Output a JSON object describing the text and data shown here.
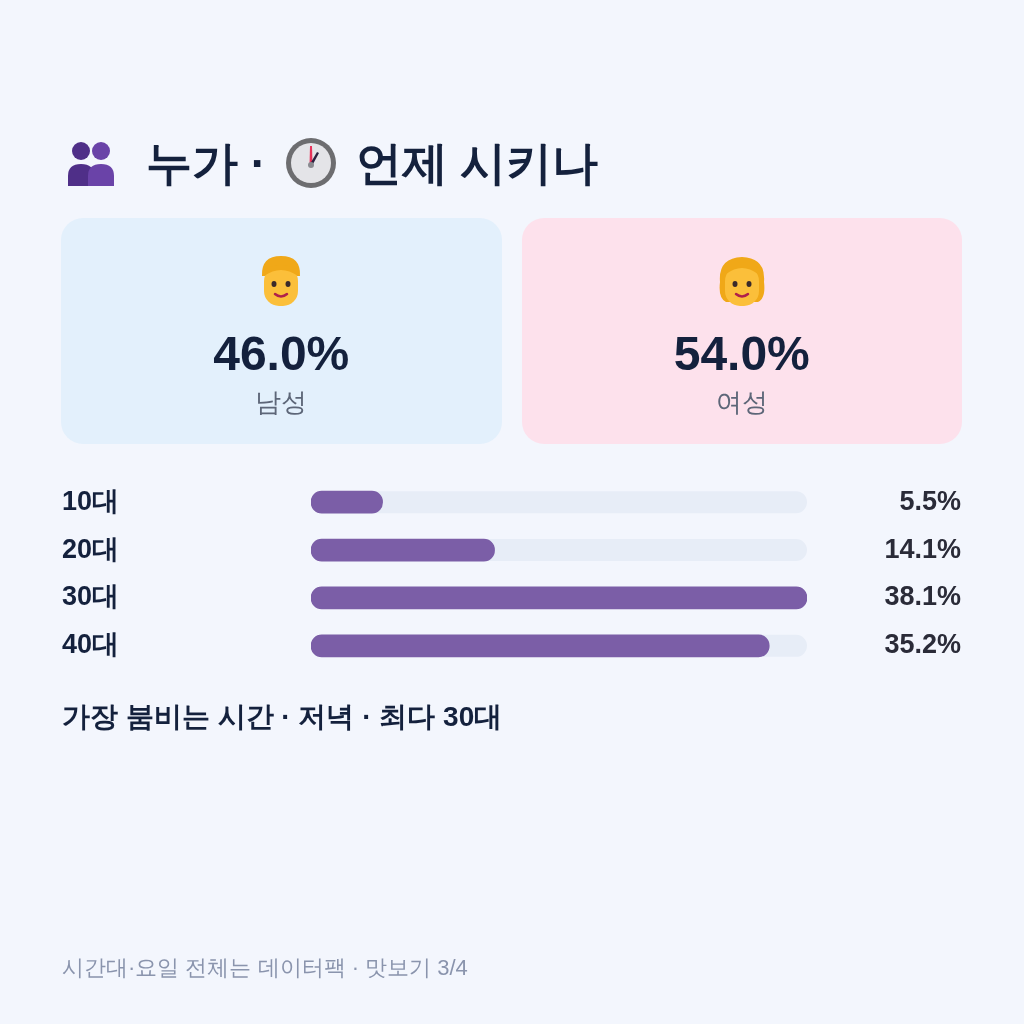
{
  "chart_data": [
    {
      "type": "other",
      "title": "누가 · 언제 시키나",
      "categories": [
        "남성",
        "여성"
      ],
      "value_labels": [
        "46.0%",
        "54.0%"
      ],
      "colors": [
        "#e3f0fc",
        "#fde1ec"
      ]
    },
    {
      "type": "bar",
      "orientation": "horizontal",
      "categories": [
        "10대",
        "20대",
        "30대",
        "40대"
      ],
      "values": [
        5.5,
        14.1,
        38.1,
        35.2
      ],
      "value_labels": [
        "5.5%",
        "14.1%",
        "38.1%",
        "35.2%"
      ],
      "color": "#7b5ea7",
      "tick_labels": "y",
      "annotations": [
        "가장 붐비는 시간 · 저녁 · 최다 30대",
        "시간대·요일 전체는 데이터팩 · 맛보기 3/4"
      ]
    }
  ]
}
